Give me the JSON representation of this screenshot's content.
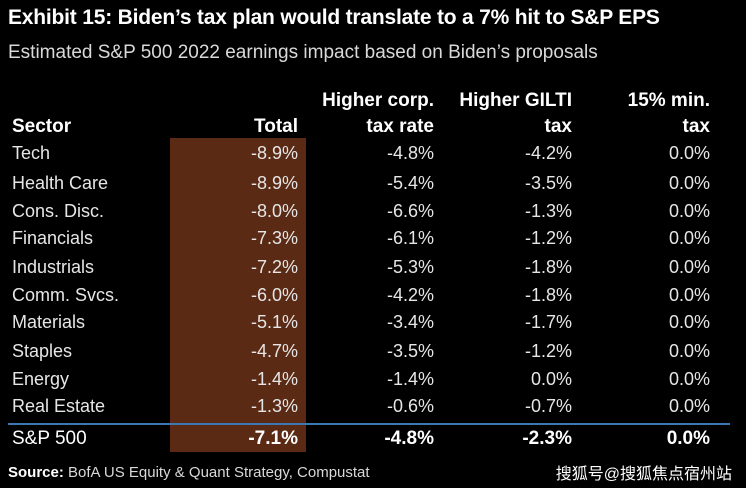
{
  "chart_data": {
    "type": "table",
    "title": "Exhibit 15: Biden’s tax plan would translate to a 7% hit to S&P EPS",
    "subtitle": "Estimated S&P 500 2022 earnings impact based on Biden’s proposals",
    "columns": {
      "sector": "Sector",
      "total": "Total",
      "corp_line1": "Higher corp.",
      "corp_line2": "tax rate",
      "gilti_line1": "Higher GILTI",
      "gilti_line2": "tax",
      "min_line1": "15% min.",
      "min_line2": "tax"
    },
    "rows": [
      {
        "sector": "Tech",
        "total": "-8.9%",
        "corp": "-4.8%",
        "gilti": "-4.2%",
        "min": "0.0%"
      },
      {
        "sector": "Health Care",
        "total": "-8.9%",
        "corp": "-5.4%",
        "gilti": "-3.5%",
        "min": "0.0%"
      },
      {
        "sector": "Cons. Disc.",
        "total": "-8.0%",
        "corp": "-6.6%",
        "gilti": "-1.3%",
        "min": "0.0%"
      },
      {
        "sector": "Financials",
        "total": "-7.3%",
        "corp": "-6.1%",
        "gilti": "-1.2%",
        "min": "0.0%"
      },
      {
        "sector": "Industrials",
        "total": "-7.2%",
        "corp": "-5.3%",
        "gilti": "-1.8%",
        "min": "0.0%"
      },
      {
        "sector": "Comm. Svcs.",
        "total": "-6.0%",
        "corp": "-4.2%",
        "gilti": "-1.8%",
        "min": "0.0%"
      },
      {
        "sector": "Materials",
        "total": "-5.1%",
        "corp": "-3.4%",
        "gilti": "-1.7%",
        "min": "0.0%"
      },
      {
        "sector": "Staples",
        "total": "-4.7%",
        "corp": "-3.5%",
        "gilti": "-1.2%",
        "min": "0.0%"
      },
      {
        "sector": "Energy",
        "total": "-1.4%",
        "corp": "-1.4%",
        "gilti": "0.0%",
        "min": "0.0%"
      },
      {
        "sector": "Real Estate",
        "total": "-1.3%",
        "corp": "-0.6%",
        "gilti": "-0.7%",
        "min": "0.0%"
      }
    ],
    "total_row": {
      "sector": "S&P 500",
      "total": "-7.1%",
      "corp": "-4.8%",
      "gilti": "-2.3%",
      "min": "0.0%"
    },
    "source_label": "Source:",
    "source_text": "BofA US Equity & Quant Strategy, Compustat",
    "watermark": "搜狐号@搜狐焦点宿州站",
    "colors": {
      "background": "#000000",
      "highlight": "#5a2a14",
      "rule": "#3c78b4"
    }
  }
}
